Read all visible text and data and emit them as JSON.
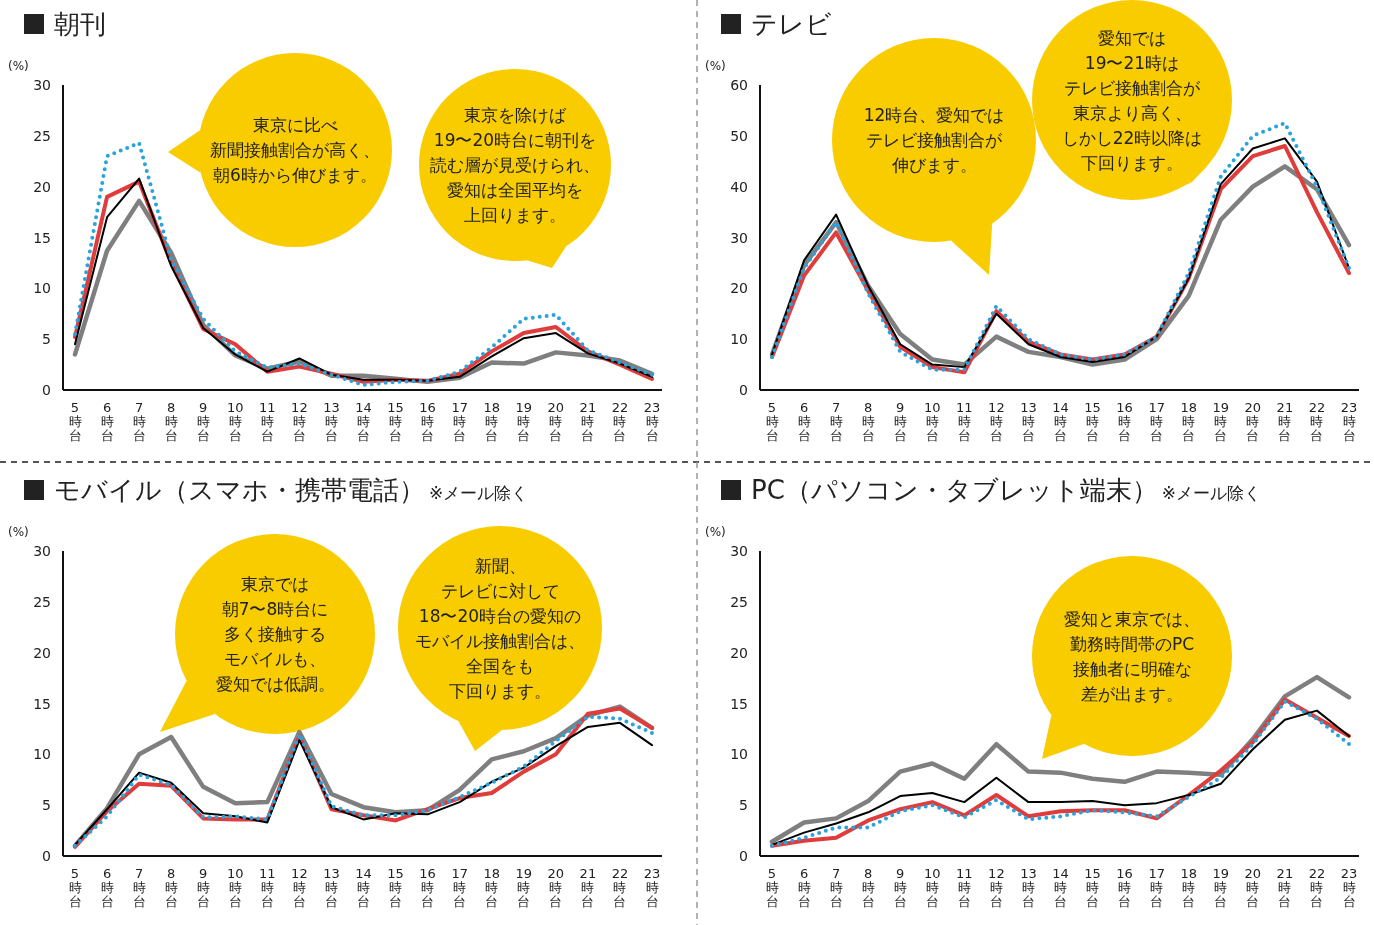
{
  "chart_data": [
    {
      "type": "line",
      "title": "朝刊",
      "ylabel": "(%)",
      "ylim": [
        0,
        30
      ],
      "yticks": [
        0,
        5,
        10,
        15,
        20,
        25,
        30
      ],
      "grid": false,
      "marker": "none",
      "categories": [
        "5時台",
        "6時台",
        "7時台",
        "8時台",
        "9時台",
        "10時台",
        "11時台",
        "12時台",
        "13時台",
        "14時台",
        "15時台",
        "16時台",
        "17時台",
        "18時台",
        "19時台",
        "20時台",
        "21時台",
        "22時台",
        "23時台"
      ],
      "annotations": [
        "東京に比べ新聞接触割合が高く、朝6時から伸びます。",
        "東京を除けば19〜20時台に朝刊を読む層が見受けられ、愛知は全国平均を上回ります。"
      ],
      "series": [
        {
          "color": "#7f7f7f",
          "line_style": "solid",
          "values": [
            3.5,
            13.7,
            18.6,
            13.5,
            6.4,
            3.4,
            2.1,
            2.8,
            1.4,
            1.4,
            1.1,
            0.8,
            1.2,
            2.7,
            2.6,
            3.7,
            3.4,
            2.9,
            1.6
          ]
        },
        {
          "color": "#e03c3c",
          "line_style": "solid",
          "values": [
            5.2,
            19.0,
            20.5,
            12.5,
            6.0,
            4.5,
            1.8,
            2.3,
            1.6,
            0.8,
            1.0,
            0.9,
            1.6,
            3.8,
            5.6,
            6.2,
            3.8,
            2.5,
            1.1
          ]
        },
        {
          "color": "#29a3dc",
          "line_style": "dotted",
          "values": [
            5.5,
            23.0,
            24.3,
            12.8,
            7.0,
            3.8,
            2.2,
            2.6,
            1.5,
            0.5,
            0.8,
            0.9,
            1.8,
            4.2,
            7.0,
            7.4,
            3.9,
            2.7,
            1.5
          ]
        },
        {
          "color": "#000000",
          "line_style": "solid",
          "values": [
            4.5,
            17.0,
            20.8,
            12.2,
            6.1,
            3.5,
            1.8,
            3.1,
            1.5,
            1.0,
            1.0,
            0.9,
            1.3,
            3.3,
            5.1,
            5.6,
            3.6,
            2.6,
            1.3
          ]
        }
      ]
    },
    {
      "type": "line",
      "title": "テレビ",
      "ylabel": "(%)",
      "ylim": [
        0,
        60
      ],
      "yticks": [
        0,
        10,
        20,
        30,
        40,
        50,
        60
      ],
      "grid": false,
      "marker": "none",
      "categories": [
        "5時台",
        "6時台",
        "7時台",
        "8時台",
        "9時台",
        "10時台",
        "11時台",
        "12時台",
        "13時台",
        "14時台",
        "15時台",
        "16時台",
        "17時台",
        "18時台",
        "19時台",
        "20時台",
        "21時台",
        "22時台",
        "23時台"
      ],
      "annotations": [
        "12時台、愛知ではテレビ接触割合が伸びます。",
        "愛知では19〜21時はテレビ接触割合が東京より高く、しかし22時以降は下回ります。"
      ],
      "series": [
        {
          "color": "#7f7f7f",
          "line_style": "solid",
          "values": [
            7,
            24.5,
            33,
            20.5,
            11,
            6,
            5,
            10.5,
            7.5,
            6.5,
            5,
            6,
            10,
            18.5,
            33.5,
            40,
            44,
            39.5,
            28.5
          ]
        },
        {
          "color": "#e03c3c",
          "line_style": "solid",
          "values": [
            6.5,
            22.5,
            31,
            19.5,
            8.5,
            4.5,
            3.5,
            15.5,
            9.5,
            7,
            6,
            7,
            10.5,
            22,
            39.5,
            46,
            48,
            35,
            23
          ]
        },
        {
          "color": "#29a3dc",
          "line_style": "dotted",
          "values": [
            6.5,
            24,
            33,
            19,
            7.5,
            4,
            4,
            16.5,
            10,
            7,
            6,
            7,
            10.5,
            23,
            42,
            50,
            52.5,
            40,
            24
          ]
        },
        {
          "color": "#000000",
          "line_style": "solid",
          "values": [
            7,
            25.5,
            34.5,
            20.5,
            9,
            5,
            4.5,
            15,
            9,
            6.5,
            5.5,
            6.5,
            10.5,
            22,
            40.5,
            47.5,
            49.5,
            41,
            24
          ]
        }
      ]
    },
    {
      "type": "line",
      "title": "モバイル（スマホ・携帯電話）",
      "subtitle": "※メール除く",
      "ylabel": "(%)",
      "ylim": [
        0,
        30
      ],
      "yticks": [
        0,
        5,
        10,
        15,
        20,
        25,
        30
      ],
      "grid": false,
      "marker": "none",
      "categories": [
        "5時台",
        "6時台",
        "7時台",
        "8時台",
        "9時台",
        "10時台",
        "11時台",
        "12時台",
        "13時台",
        "14時台",
        "15時台",
        "16時台",
        "17時台",
        "18時台",
        "19時台",
        "20時台",
        "21時台",
        "22時台",
        "23時台"
      ],
      "annotations": [
        "東京では朝7〜8時台に多く接触するモバイルも、愛知では低調。",
        "新聞、テレビに対して18〜20時台の愛知のモバイル接触割合は、全国をも下回ります。"
      ],
      "series": [
        {
          "color": "#7f7f7f",
          "line_style": "solid",
          "values": [
            1.0,
            4.7,
            10.0,
            11.7,
            6.8,
            5.2,
            5.3,
            12.2,
            6.1,
            4.8,
            4.3,
            4.5,
            6.5,
            9.5,
            10.3,
            11.6,
            13.8,
            14.7,
            12.6
          ]
        },
        {
          "color": "#e03c3c",
          "line_style": "solid",
          "values": [
            0.9,
            4.4,
            7.1,
            6.9,
            3.7,
            3.6,
            3.6,
            11.8,
            4.6,
            4.0,
            3.5,
            4.6,
            5.7,
            6.2,
            8.3,
            10.0,
            14.0,
            14.5,
            12.6
          ]
        },
        {
          "color": "#29a3dc",
          "line_style": "dotted",
          "values": [
            1.0,
            3.9,
            8.0,
            7.0,
            3.8,
            3.9,
            3.6,
            12.0,
            4.9,
            4.0,
            4.0,
            4.5,
            5.8,
            7.2,
            8.8,
            11.3,
            13.7,
            13.5,
            12.1
          ]
        },
        {
          "color": "#000000",
          "line_style": "solid",
          "values": [
            1.1,
            4.6,
            8.2,
            7.2,
            4.2,
            3.9,
            3.3,
            11.4,
            4.8,
            3.6,
            4.2,
            4.1,
            5.3,
            7.3,
            8.7,
            10.8,
            12.7,
            13.1,
            10.9
          ]
        }
      ]
    },
    {
      "type": "line",
      "title": "PC（パソコン・タブレット端末）",
      "subtitle": "※メール除く",
      "ylabel": "(%)",
      "ylim": [
        0,
        30
      ],
      "yticks": [
        0,
        5,
        10,
        15,
        20,
        25,
        30
      ],
      "grid": false,
      "marker": "none",
      "categories": [
        "5時台",
        "6時台",
        "7時台",
        "8時台",
        "9時台",
        "10時台",
        "11時台",
        "12時台",
        "13時台",
        "14時台",
        "15時台",
        "16時台",
        "17時台",
        "18時台",
        "19時台",
        "20時台",
        "21時台",
        "22時台",
        "23時台"
      ],
      "annotations": [
        "愛知と東京では、勤務時間帯のPC接触者に明確な差が出ます。"
      ],
      "series": [
        {
          "color": "#7f7f7f",
          "line_style": "solid",
          "values": [
            1.4,
            3.3,
            3.7,
            5.4,
            8.3,
            9.1,
            7.6,
            11.0,
            8.3,
            8.2,
            7.6,
            7.3,
            8.3,
            8.2,
            8.0,
            11.5,
            15.7,
            17.6,
            15.6
          ]
        },
        {
          "color": "#e03c3c",
          "line_style": "solid",
          "values": [
            1.0,
            1.5,
            1.8,
            3.5,
            4.6,
            5.3,
            4.0,
            6.0,
            3.9,
            4.4,
            4.5,
            4.5,
            3.7,
            6.0,
            8.4,
            11.2,
            15.4,
            13.6,
            11.8
          ]
        },
        {
          "color": "#29a3dc",
          "line_style": "dotted",
          "values": [
            1.0,
            1.8,
            2.8,
            2.8,
            4.4,
            5.0,
            3.8,
            5.5,
            3.6,
            3.9,
            4.5,
            4.3,
            3.9,
            5.8,
            7.7,
            11.0,
            15.2,
            13.5,
            11.0
          ]
        },
        {
          "color": "#000000",
          "line_style": "solid",
          "values": [
            1.1,
            2.3,
            3.2,
            4.3,
            5.9,
            6.2,
            5.3,
            7.7,
            5.3,
            5.3,
            5.4,
            5.0,
            5.2,
            6.0,
            7.1,
            10.5,
            13.4,
            14.3,
            11.8
          ]
        }
      ]
    }
  ]
}
